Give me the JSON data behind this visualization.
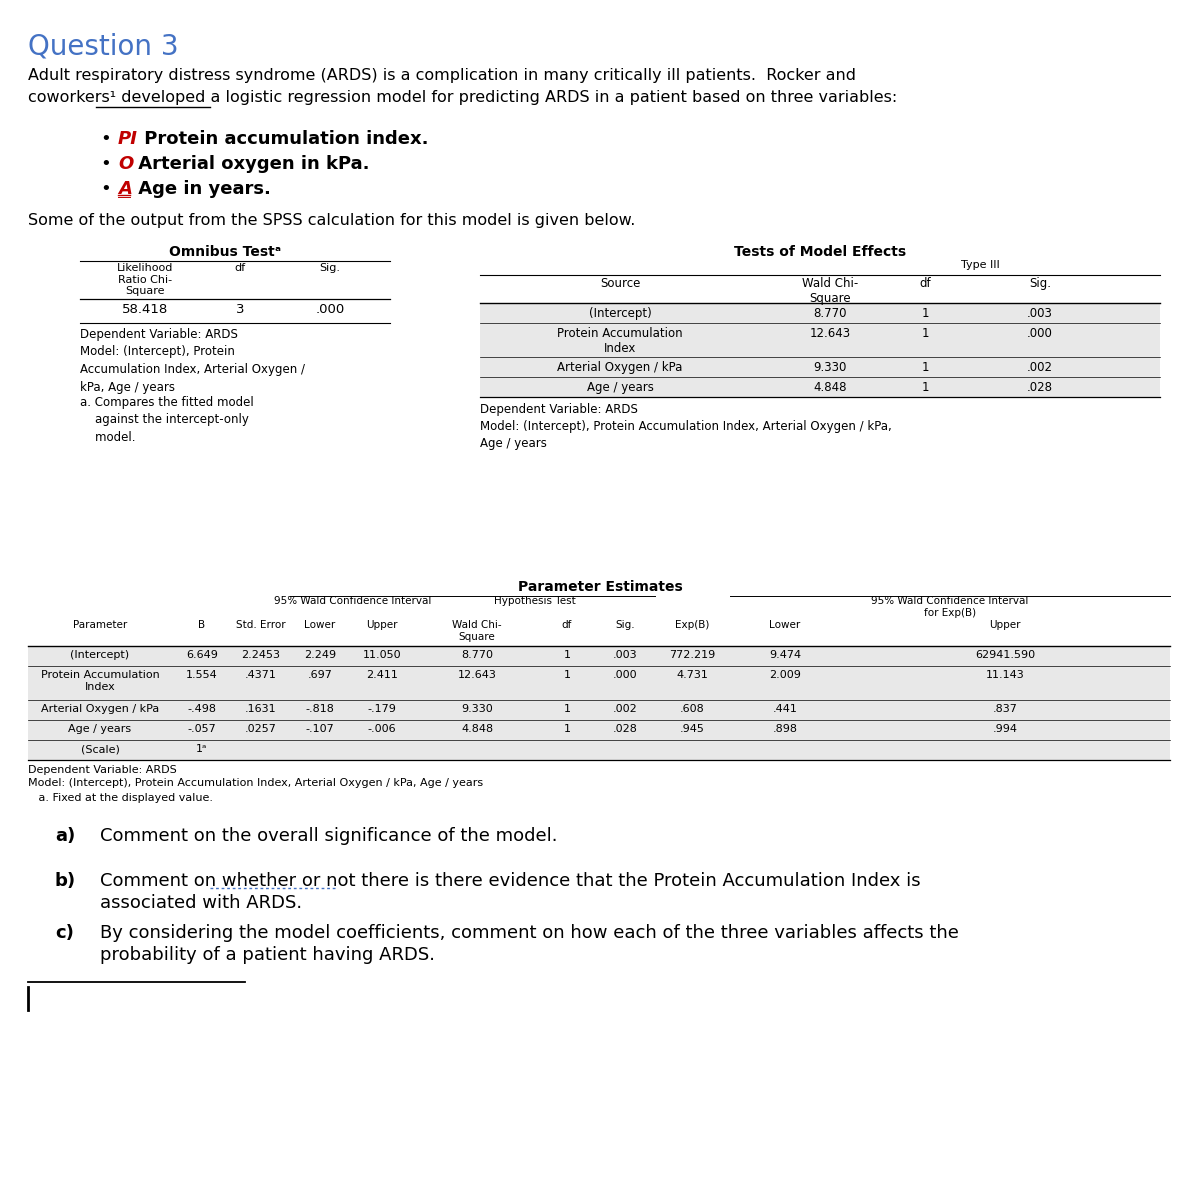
{
  "title": "Question 3",
  "title_color": "#4472C4",
  "bg_color": "#ffffff",
  "intro_line1": "Adult respiratory distress syndrome (ARDS) is a complication in many critically ill patients.  Rocker and",
  "intro_line2": "coworkers¹ developed a logistic regression model for predicting ARDS in a patient based on three variables:",
  "bullets": [
    {
      "letter": "PI",
      "letter_color": "#C00000",
      "text": " Protein accumulation index.",
      "underline_letter": false
    },
    {
      "letter": "O",
      "letter_color": "#C00000",
      "text": " Arterial oxygen in kPa.",
      "underline_letter": false
    },
    {
      "letter": "A",
      "letter_color": "#C00000",
      "text": " Age in years.",
      "underline_letter": true
    }
  ],
  "spss_intro": "Some of the output from the SPSS calculation for this model is given below.",
  "omnibus_title": "Omnibus Testᵃ",
  "omnibus_headers": [
    "Likelihood\nRatio Chi-\nSquare",
    "df",
    "Sig."
  ],
  "omnibus_data": [
    [
      "58.418",
      "3",
      ".000"
    ]
  ],
  "omnibus_note1": "Dependent Variable: ARDS\nModel: (Intercept), Protein\nAccumulation Index, Arterial Oxygen /\nkPa, Age / years",
  "omnibus_note2": "a. Compares the fitted model\n    against the intercept-only\n    model.",
  "tme_title": "Tests of Model Effects",
  "tme_type3": "Type III",
  "tme_headers": [
    "Source",
    "Wald Chi-\nSquare",
    "df",
    "Sig."
  ],
  "tme_rows": [
    [
      "(Intercept)",
      "8.770",
      "1",
      ".003"
    ],
    [
      "Protein Accumulation\nIndex",
      "12.643",
      "1",
      ".000"
    ],
    [
      "Arterial Oxygen / kPa",
      "9.330",
      "1",
      ".002"
    ],
    [
      "Age / years",
      "4.848",
      "1",
      ".028"
    ]
  ],
  "tme_note": "Dependent Variable: ARDS\nModel: (Intercept), Protein Accumulation Index, Arterial Oxygen / kPa,\nAge / years",
  "pe_title": "Parameter Estimates",
  "pe_rows": [
    [
      "(Intercept)",
      "6.649",
      "2.2453",
      "2.249",
      "11.050",
      "8.770",
      "1",
      ".003",
      "772.219",
      "9.474",
      "62941.590"
    ],
    [
      "Protein Accumulation\nIndex",
      "1.554",
      ".4371",
      ".697",
      "2.411",
      "12.643",
      "1",
      ".000",
      "4.731",
      "2.009",
      "11.143"
    ],
    [
      "Arterial Oxygen / kPa",
      "-.498",
      ".1631",
      "-.818",
      "-.179",
      "9.330",
      "1",
      ".002",
      ".608",
      ".441",
      ".837"
    ],
    [
      "Age / years",
      "-.057",
      ".0257",
      "-.107",
      "-.006",
      "4.848",
      "1",
      ".028",
      ".945",
      ".898",
      ".994"
    ],
    [
      "(Scale)",
      "1ᵃ",
      "",
      "",
      "",
      "",
      "",
      "",
      "",
      "",
      ""
    ]
  ],
  "pe_note1": "Dependent Variable: ARDS\nModel: (Intercept), Protein Accumulation Index, Arterial Oxygen / kPa, Age / years",
  "pe_note2": "   a. Fixed at the displayed value.",
  "shade_color": "#E8E8E8",
  "q_a": "a) Comment on the overall significance of the model.",
  "q_b_letter": "b)",
  "q_b_text": "Comment on whether or not there is there evidence that the Protein Accumulation Index is\n      associated with ARDS.",
  "q_c_letter": "c)",
  "q_c_text": "By considering the model coefficients, comment on how each of the three variables affects the\n      probability of a patient having ARDS."
}
